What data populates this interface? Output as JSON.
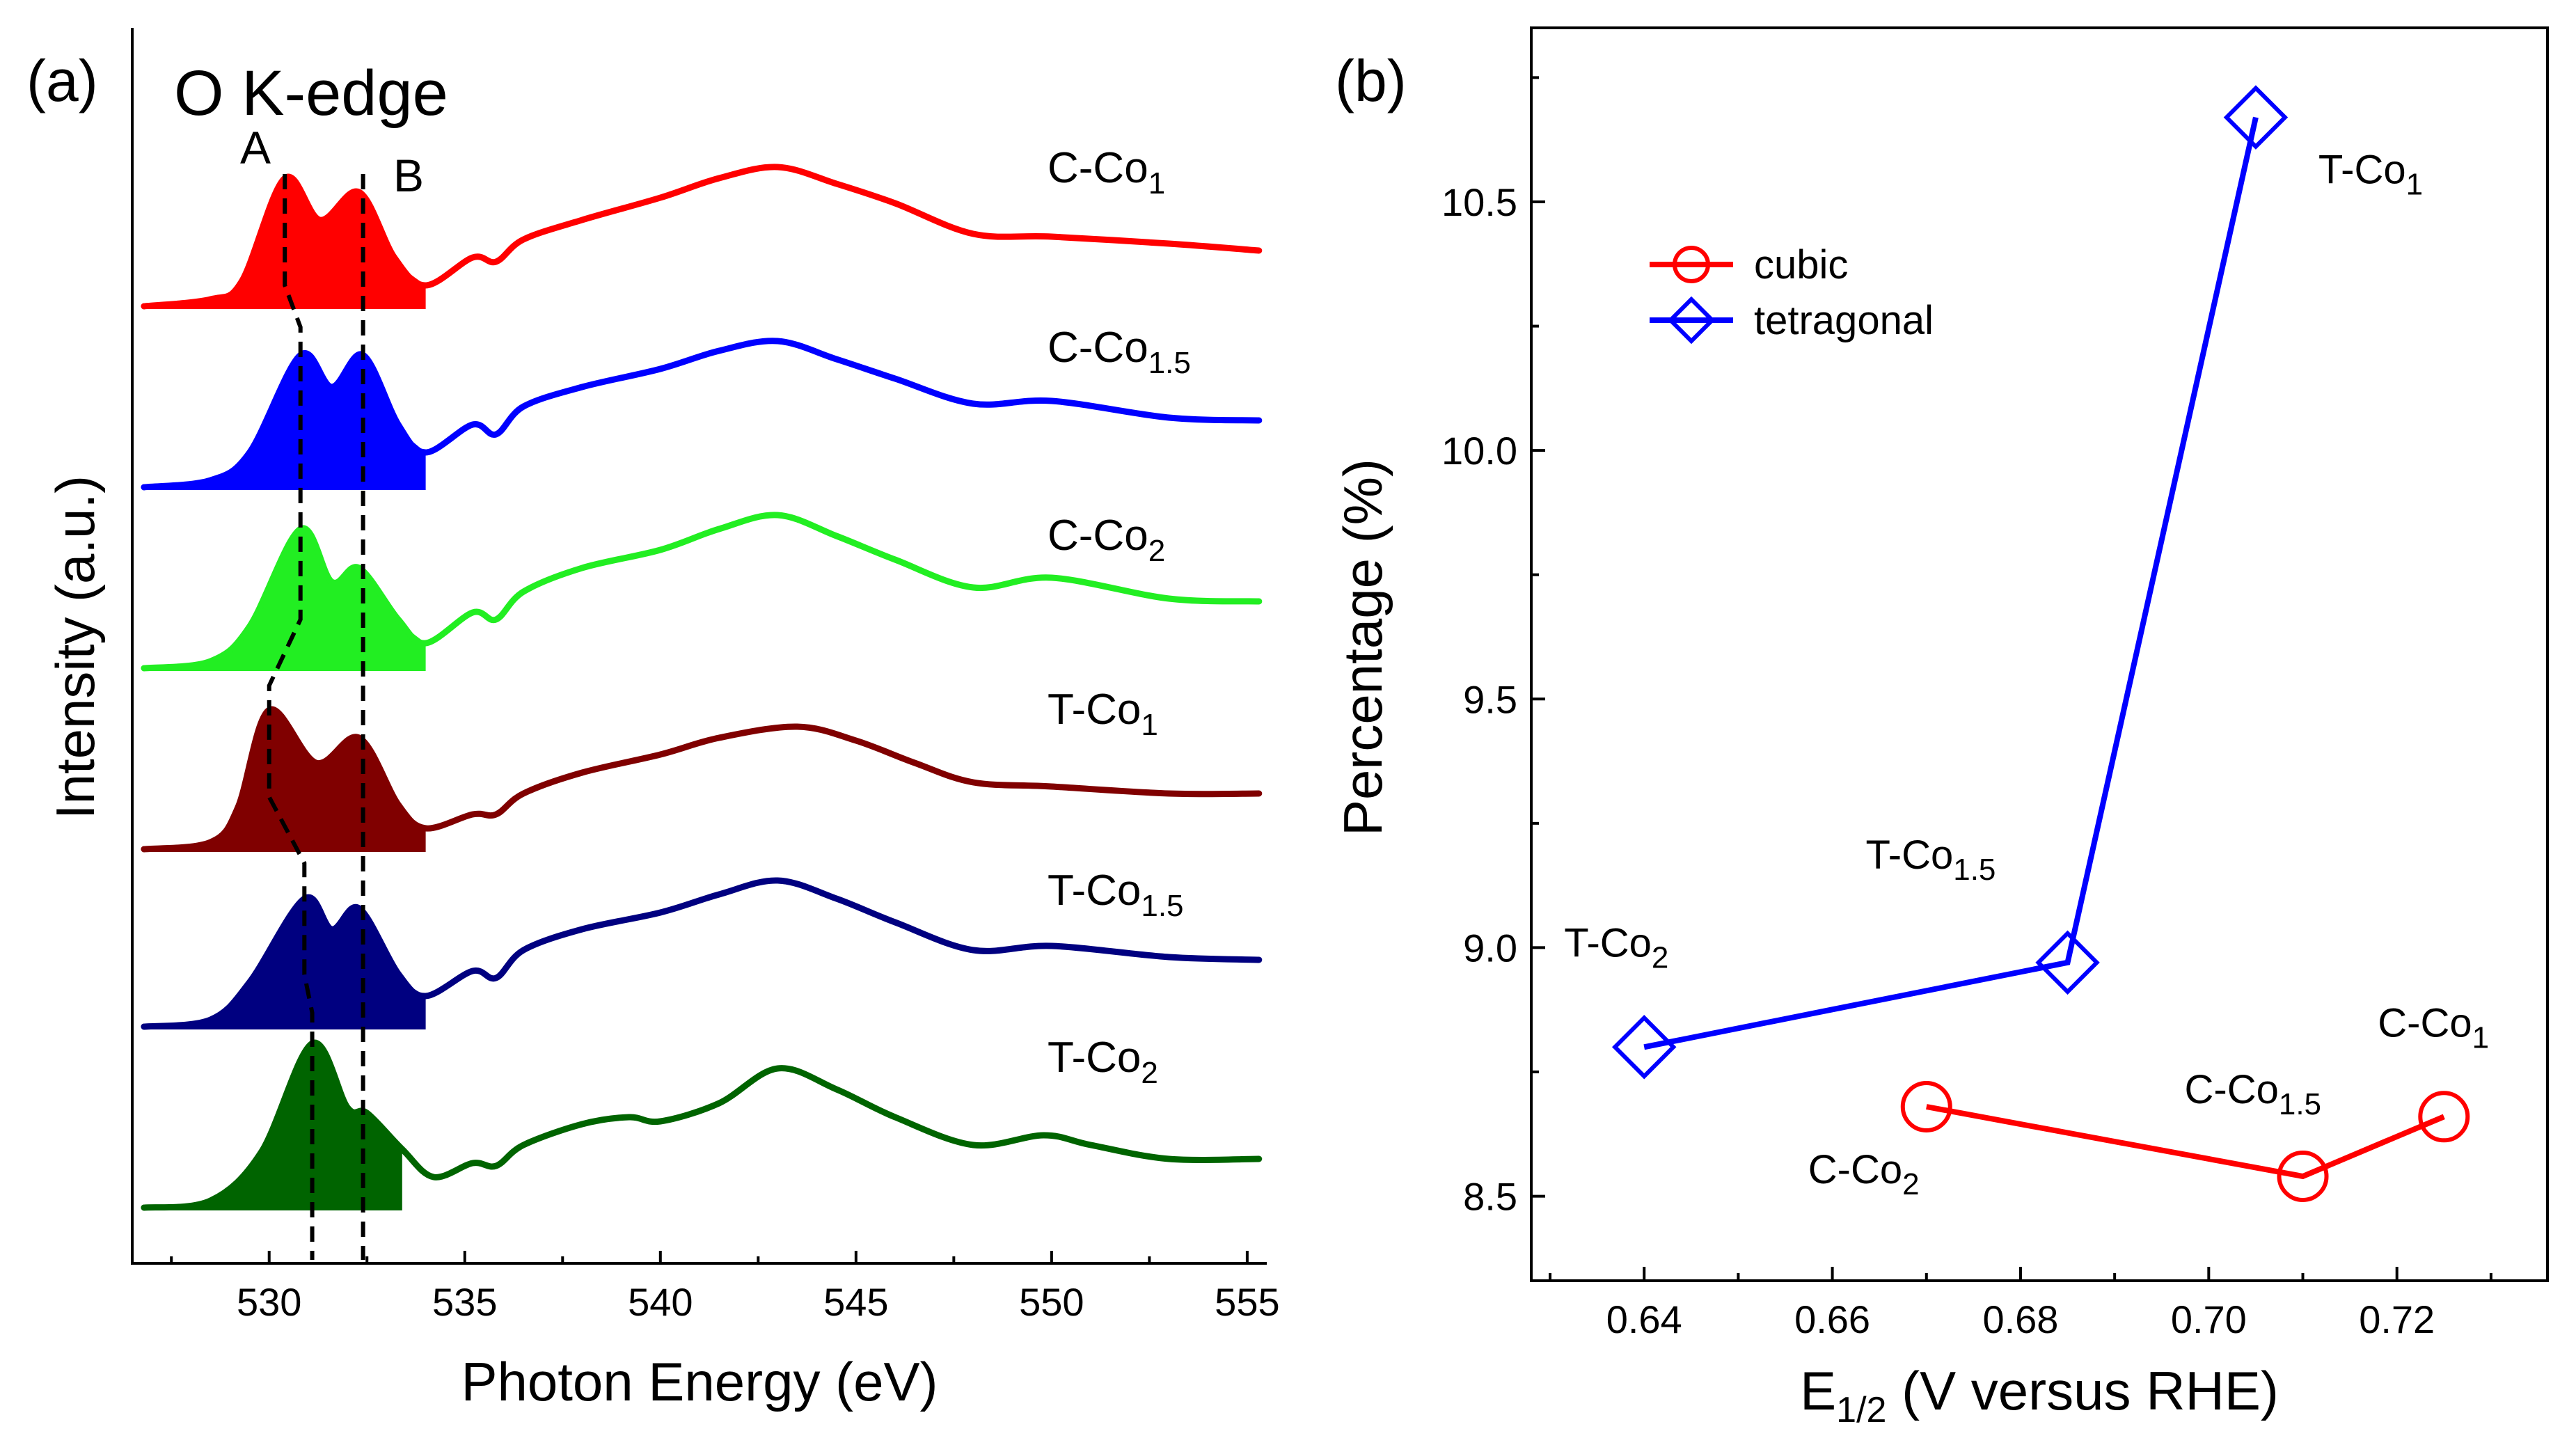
{
  "chart_data": [
    {
      "type": "line",
      "panel_label": "(a)",
      "title": "O K-edge",
      "xlabel": "Photon Energy (eV)",
      "ylabel": "Intensity (a.u.)",
      "xlim": [
        526.5,
        555.5
      ],
      "xticks": [
        530,
        535,
        540,
        545,
        550,
        555
      ],
      "xtick_labels": [
        "530",
        "535",
        "540",
        "545",
        "550",
        "555"
      ],
      "peak_labels": {
        "A": "A",
        "B": "B"
      },
      "peak_B_position_eV": 532.4,
      "fill_end_eV": 534.0,
      "series": [
        {
          "name": "C-Co1",
          "label_main": "C-Co",
          "label_sub": "1",
          "color": "#ff0000",
          "peak_A_eV": 530.4,
          "ratio_A_B": 1.18,
          "points": [
            [
              526.8,
              0.0
            ],
            [
              528.5,
              0.05
            ],
            [
              529.3,
              0.18
            ],
            [
              530.4,
              0.92
            ],
            [
              531.3,
              0.62
            ],
            [
              532.3,
              0.82
            ],
            [
              533.2,
              0.35
            ],
            [
              534.0,
              0.15
            ],
            [
              535.2,
              0.35
            ],
            [
              535.8,
              0.32
            ],
            [
              536.5,
              0.48
            ],
            [
              538,
              0.62
            ],
            [
              540,
              0.78
            ],
            [
              541.5,
              0.92
            ],
            [
              543,
              1.0
            ],
            [
              544.5,
              0.88
            ],
            [
              546,
              0.74
            ],
            [
              548,
              0.52
            ],
            [
              550,
              0.5
            ],
            [
              553,
              0.45
            ],
            [
              555.3,
              0.4
            ]
          ]
        },
        {
          "name": "C-Co1.5",
          "label_main": "C-Co",
          "label_sub": "1.5",
          "color": "#0000ff",
          "peak_A_eV": 530.8,
          "ratio_A_B": 1.0,
          "points": [
            [
              526.8,
              0.0
            ],
            [
              528.5,
              0.05
            ],
            [
              529.5,
              0.25
            ],
            [
              530.8,
              0.95
            ],
            [
              531.6,
              0.72
            ],
            [
              532.4,
              0.95
            ],
            [
              533.3,
              0.45
            ],
            [
              534.0,
              0.25
            ],
            [
              535.2,
              0.45
            ],
            [
              535.8,
              0.38
            ],
            [
              536.5,
              0.58
            ],
            [
              538,
              0.72
            ],
            [
              540,
              0.85
            ],
            [
              541.5,
              0.98
            ],
            [
              543,
              1.05
            ],
            [
              544.5,
              0.92
            ],
            [
              546,
              0.78
            ],
            [
              548,
              0.6
            ],
            [
              550,
              0.62
            ],
            [
              553,
              0.5
            ],
            [
              555.3,
              0.48
            ]
          ]
        },
        {
          "name": "C-Co2",
          "label_main": "C-Co",
          "label_sub": "2",
          "color": "#22ee22",
          "peak_A_eV": 530.8,
          "ratio_A_B": 1.4,
          "points": [
            [
              526.8,
              0.0
            ],
            [
              528.5,
              0.05
            ],
            [
              529.5,
              0.3
            ],
            [
              530.8,
              1.0
            ],
            [
              531.6,
              0.62
            ],
            [
              532.3,
              0.72
            ],
            [
              533.3,
              0.35
            ],
            [
              534.0,
              0.18
            ],
            [
              535.2,
              0.4
            ],
            [
              535.8,
              0.35
            ],
            [
              536.5,
              0.55
            ],
            [
              538,
              0.72
            ],
            [
              540,
              0.85
            ],
            [
              541.5,
              1.0
            ],
            [
              543,
              1.1
            ],
            [
              544.5,
              0.95
            ],
            [
              546,
              0.78
            ],
            [
              548,
              0.58
            ],
            [
              550,
              0.65
            ],
            [
              553,
              0.5
            ],
            [
              555.3,
              0.48
            ]
          ]
        },
        {
          "name": "T-Co1",
          "label_main": "T-Co",
          "label_sub": "1",
          "color": "#800000",
          "peak_A_eV": 530.0,
          "ratio_A_B": 1.22,
          "points": [
            [
              526.8,
              0.0
            ],
            [
              528.5,
              0.05
            ],
            [
              529.2,
              0.3
            ],
            [
              530.0,
              1.0
            ],
            [
              531.2,
              0.62
            ],
            [
              532.3,
              0.8
            ],
            [
              533.3,
              0.32
            ],
            [
              534.0,
              0.15
            ],
            [
              535.2,
              0.25
            ],
            [
              535.8,
              0.25
            ],
            [
              536.5,
              0.4
            ],
            [
              538,
              0.55
            ],
            [
              540,
              0.68
            ],
            [
              541.5,
              0.8
            ],
            [
              543.5,
              0.88
            ],
            [
              545,
              0.78
            ],
            [
              546.5,
              0.62
            ],
            [
              548,
              0.48
            ],
            [
              550,
              0.45
            ],
            [
              553,
              0.4
            ],
            [
              555.3,
              0.4
            ]
          ]
        },
        {
          "name": "T-Co1.5",
          "label_main": "T-Co",
          "label_sub": "1.5",
          "color": "#000080",
          "peak_A_eV": 530.9,
          "ratio_A_B": 1.12,
          "points": [
            [
              526.8,
              0.0
            ],
            [
              528.5,
              0.05
            ],
            [
              529.5,
              0.32
            ],
            [
              530.9,
              0.92
            ],
            [
              531.6,
              0.7
            ],
            [
              532.3,
              0.85
            ],
            [
              533.3,
              0.38
            ],
            [
              534.0,
              0.22
            ],
            [
              535.2,
              0.4
            ],
            [
              535.8,
              0.35
            ],
            [
              536.5,
              0.55
            ],
            [
              538,
              0.7
            ],
            [
              540,
              0.82
            ],
            [
              541.5,
              0.95
            ],
            [
              543,
              1.05
            ],
            [
              544.5,
              0.92
            ],
            [
              546,
              0.75
            ],
            [
              548,
              0.55
            ],
            [
              550,
              0.58
            ],
            [
              553,
              0.5
            ],
            [
              555.3,
              0.48
            ]
          ]
        },
        {
          "name": "T-Co2",
          "label_main": "T-Co",
          "label_sub": "2",
          "color": "#006400",
          "peak_A_eV": 531.1,
          "ratio_A_B": 1.46,
          "points": [
            [
              526.8,
              0.0
            ],
            [
              528.5,
              0.05
            ],
            [
              529.8,
              0.4
            ],
            [
              531.1,
              1.18
            ],
            [
              532.0,
              0.72
            ],
            [
              532.5,
              0.68
            ],
            [
              533.4,
              0.42
            ],
            [
              534.2,
              0.22
            ],
            [
              535.2,
              0.32
            ],
            [
              535.8,
              0.3
            ],
            [
              536.5,
              0.45
            ],
            [
              538,
              0.6
            ],
            [
              539.2,
              0.65
            ],
            [
              540,
              0.62
            ],
            [
              541.5,
              0.75
            ],
            [
              543,
              1.0
            ],
            [
              544.5,
              0.85
            ],
            [
              546,
              0.65
            ],
            [
              548,
              0.45
            ],
            [
              549.8,
              0.52
            ],
            [
              551,
              0.45
            ],
            [
              553,
              0.35
            ],
            [
              555.3,
              0.35
            ]
          ]
        }
      ]
    },
    {
      "type": "line",
      "panel_label": "(b)",
      "xlabel_main": "E",
      "xlabel_sub": "1/2",
      "xlabel_rest": " (V versus RHE)",
      "ylabel": "Percentage  (%)",
      "xlim": [
        0.628,
        0.736
      ],
      "ylim": [
        8.33,
        10.85
      ],
      "xticks": [
        0.64,
        0.66,
        0.68,
        0.7,
        0.72
      ],
      "xtick_labels": [
        "0.64",
        "0.66",
        "0.68",
        "0.70",
        "0.72"
      ],
      "yticks": [
        8.5,
        9.0,
        9.5,
        10.0,
        10.5
      ],
      "ytick_labels": [
        "8.5",
        "9.0",
        "9.5",
        "10.0",
        "10.5"
      ],
      "series": [
        {
          "name": "cubic",
          "color": "#ff0000",
          "marker": "circle",
          "x": [
            0.67,
            0.71,
            0.725
          ],
          "y": [
            8.68,
            8.54,
            8.66
          ],
          "point_labels": [
            {
              "main": "C-Co",
              "sub": "2"
            },
            {
              "main": "C-Co",
              "sub": "1.5"
            },
            {
              "main": "C-Co",
              "sub": "1"
            }
          ]
        },
        {
          "name": "tetragonal",
          "color": "#0000ff",
          "marker": "diamond",
          "x": [
            0.64,
            0.685,
            0.705
          ],
          "y": [
            8.8,
            8.97,
            10.67
          ],
          "point_labels": [
            {
              "main": "T-Co",
              "sub": "2"
            },
            {
              "main": "T-Co",
              "sub": "1.5"
            },
            {
              "main": "T-Co",
              "sub": "1"
            }
          ]
        }
      ]
    }
  ]
}
